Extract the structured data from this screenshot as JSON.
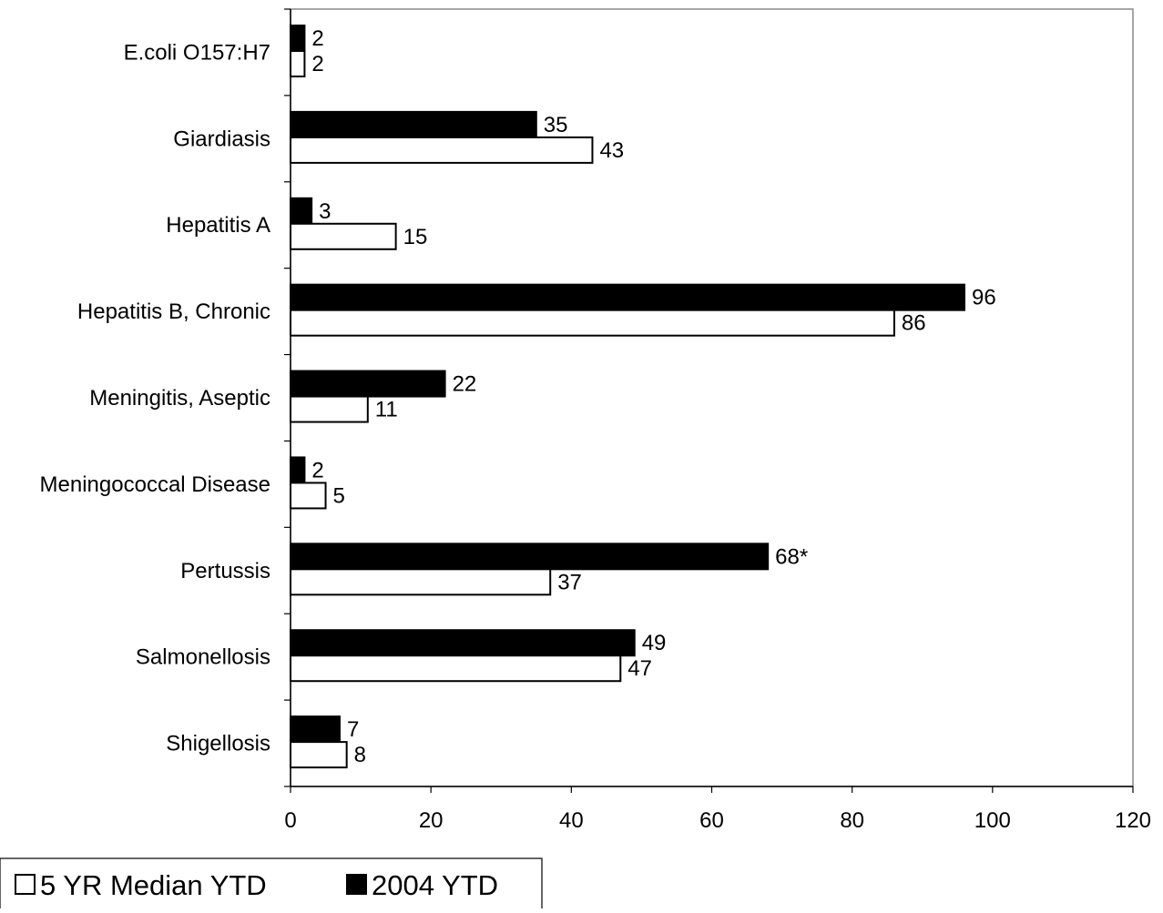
{
  "chart_data": {
    "type": "bar",
    "orientation": "horizontal",
    "title": "",
    "xlabel": "",
    "ylabel": "",
    "categories": [
      "E.coli O157:H7",
      "Giardiasis",
      "Hepatitis A",
      "Hepatitis B, Chronic",
      "Meningitis, Aseptic",
      "Meningococcal Disease",
      "Pertussis",
      "Salmonellosis",
      "Shigellosis"
    ],
    "series": [
      {
        "name": "2004 YTD",
        "color": "#000000",
        "values": [
          2,
          35,
          3,
          96,
          22,
          2,
          68,
          49,
          7
        ],
        "labels": [
          "2",
          "35",
          "3",
          "96",
          "22",
          "2",
          "68*",
          "49",
          "7"
        ]
      },
      {
        "name": "5 YR Median YTD",
        "color": "#ffffff",
        "values": [
          2,
          43,
          15,
          86,
          11,
          5,
          37,
          47,
          8
        ],
        "labels": [
          "2",
          "43",
          "15",
          "86",
          "11",
          "5",
          "37",
          "47",
          "8"
        ]
      }
    ],
    "xlim": [
      0,
      120
    ],
    "xticks": [
      0,
      20,
      40,
      60,
      80,
      100,
      120
    ],
    "grid": false,
    "legend": {
      "position": "bottom-left",
      "order": [
        "5 YR Median YTD",
        "2004 YTD"
      ]
    }
  }
}
